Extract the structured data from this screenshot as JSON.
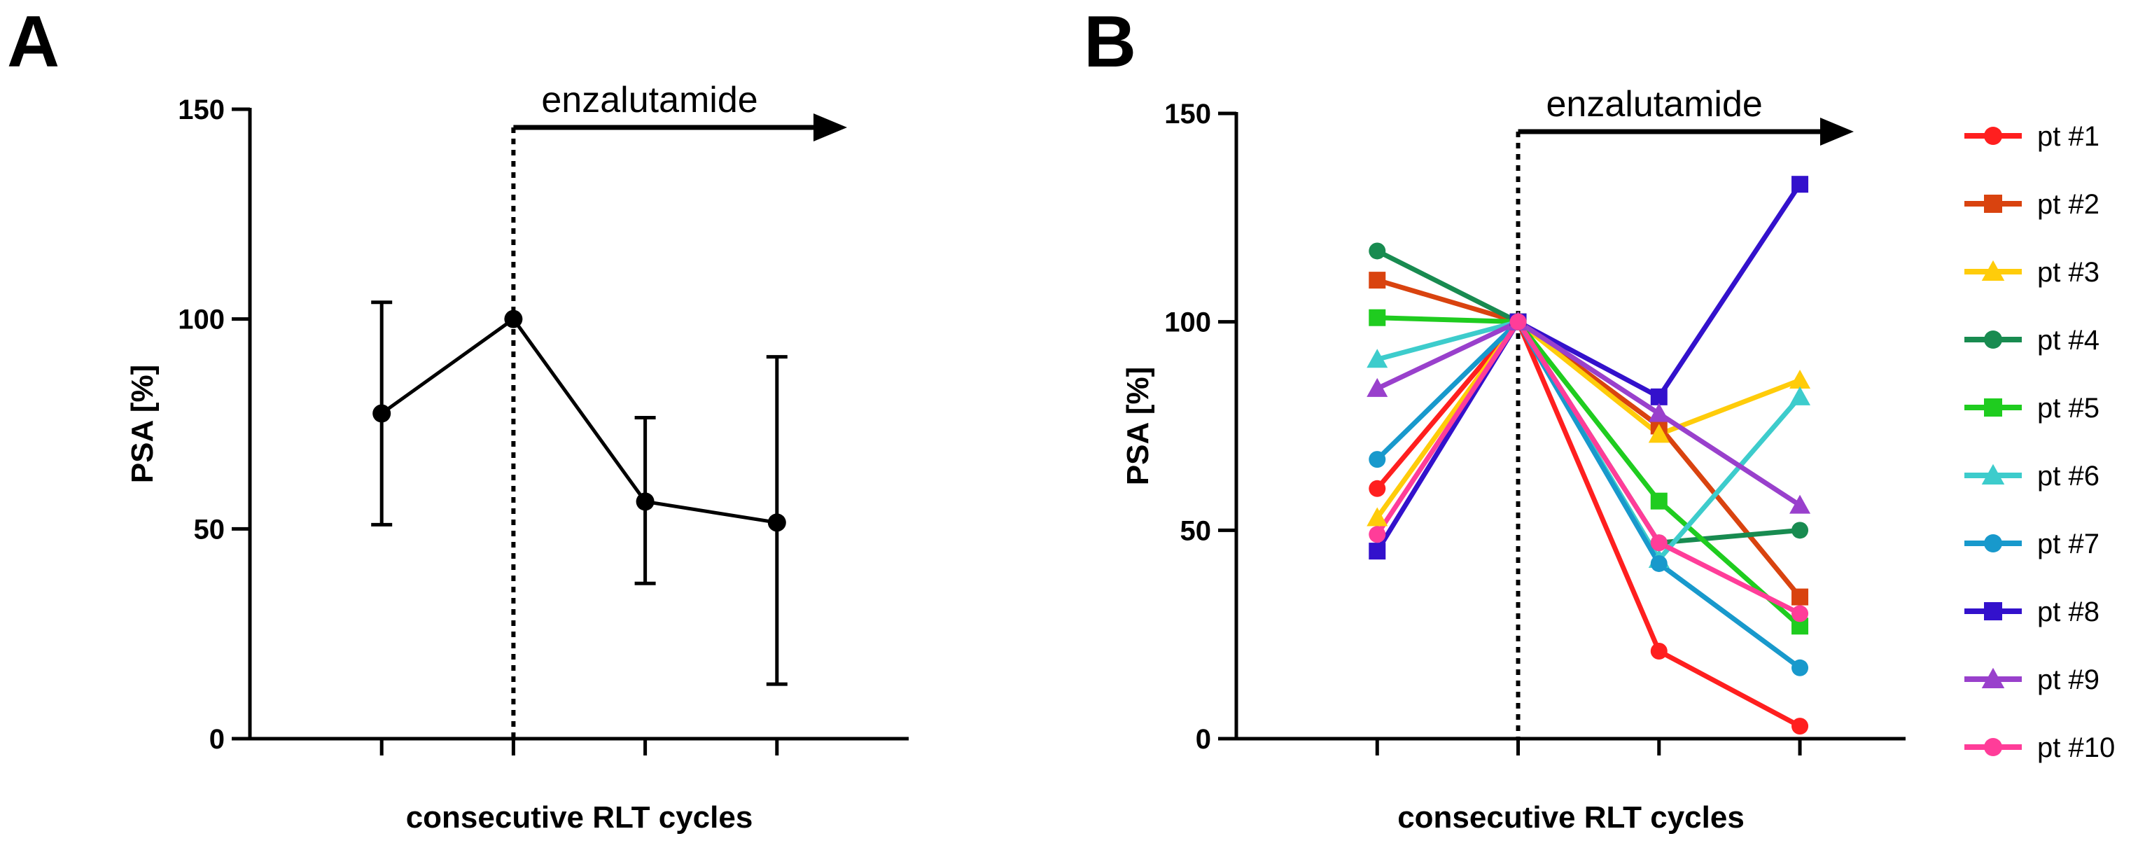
{
  "figure": {
    "panels": [
      {
        "letter": "A"
      },
      {
        "letter": "B"
      }
    ]
  },
  "chart_data": [
    {
      "type": "line",
      "panel": "A",
      "xlabel": "consecutive RLT cycles",
      "ylabel": "PSA [%]",
      "ylim": [
        0,
        150
      ],
      "yticks": [
        0,
        50,
        100,
        150
      ],
      "xlim": [
        0,
        5
      ],
      "x": [
        1,
        2,
        3,
        4
      ],
      "series": [
        {
          "values": [
            77.5,
            100,
            56.5,
            51.5
          ],
          "error_low": [
            51,
            100,
            37,
            13
          ],
          "error_high": [
            104,
            100,
            76.5,
            91
          ],
          "color": "#000000"
        }
      ],
      "annotation": {
        "text": "enzalutamide",
        "start_x": 2,
        "arrow": true
      },
      "grid": false
    },
    {
      "type": "line",
      "panel": "B",
      "xlabel": "consecutive RLT cycles",
      "ylabel": "PSA [%]",
      "ylim": [
        0,
        150
      ],
      "yticks": [
        0,
        50,
        100,
        150
      ],
      "xlim": [
        0,
        4
      ],
      "x": [
        1,
        2,
        3,
        4
      ],
      "annotation": {
        "text": "enzalutamide",
        "start_x": 2,
        "arrow": true
      },
      "legend_position": "right",
      "grid": false,
      "series": [
        {
          "name": "pt #1",
          "values": [
            60,
            100,
            21,
            3
          ],
          "color": "#ff1f1f",
          "marker": "circle"
        },
        {
          "name": "pt #2",
          "values": [
            110,
            100,
            75,
            34
          ],
          "color": "#d9430f",
          "marker": "square"
        },
        {
          "name": "pt #3",
          "values": [
            53,
            100,
            73,
            86
          ],
          "color": "#ffcc0a",
          "marker": "triangle"
        },
        {
          "name": "pt #4",
          "values": [
            117,
            100,
            47,
            50
          ],
          "color": "#188b50",
          "marker": "circle"
        },
        {
          "name": "pt #5",
          "values": [
            101,
            100,
            57,
            27
          ],
          "color": "#1fcc1f",
          "marker": "square"
        },
        {
          "name": "pt #6",
          "values": [
            91,
            100,
            43,
            82
          ],
          "color": "#3dcccc",
          "marker": "triangle"
        },
        {
          "name": "pt #7",
          "values": [
            67,
            100,
            42,
            17
          ],
          "color": "#1899cc",
          "marker": "circle"
        },
        {
          "name": "pt #8",
          "values": [
            45,
            100,
            82,
            133
          ],
          "color": "#3311cc",
          "marker": "square"
        },
        {
          "name": "pt #9",
          "values": [
            84,
            100,
            78,
            56
          ],
          "color": "#9940cc",
          "marker": "triangle"
        },
        {
          "name": "pt #10",
          "values": [
            49,
            100,
            47,
            30
          ],
          "color": "#ff3d99",
          "marker": "circle"
        }
      ]
    }
  ]
}
